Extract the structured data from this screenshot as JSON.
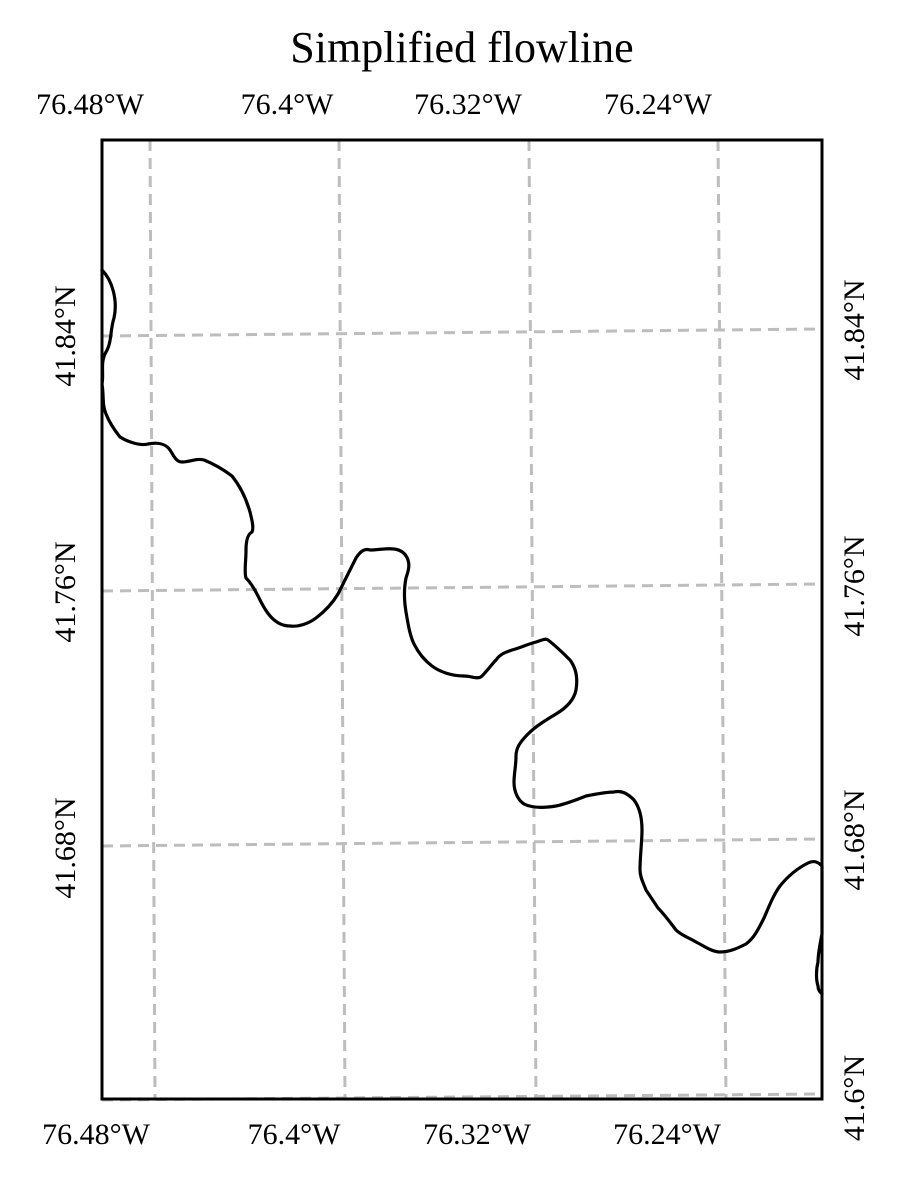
{
  "title": "Simplified flowline",
  "top_lon_labels": [
    "76.48°W",
    "76.4°W",
    "76.32°W",
    "76.24°W"
  ],
  "bottom_lon_labels": [
    "76.48°W",
    "76.4°W",
    "76.32°W",
    "76.24°W"
  ],
  "left_lat_labels": [
    "41.84°N",
    "41.76°N",
    "41.68°N"
  ],
  "right_lat_labels": [
    "41.84°N",
    "41.76°N",
    "41.68°N",
    "41.6°N"
  ],
  "colors": {
    "frame": "#000000",
    "gridline": "#bdbdbd",
    "flowline": "#000000",
    "background": "#ffffff"
  },
  "chart_data": {
    "type": "map",
    "title": "Simplified flowline",
    "features": [
      {
        "type": "river-flowline",
        "color": "#000000"
      }
    ],
    "gridlines": {
      "style": "dashed",
      "lon": [
        "76.48°W",
        "76.4°W",
        "76.32°W",
        "76.24°W"
      ],
      "lat": [
        "41.84°N",
        "41.76°N",
        "41.68°N",
        "41.6°N"
      ]
    }
  }
}
